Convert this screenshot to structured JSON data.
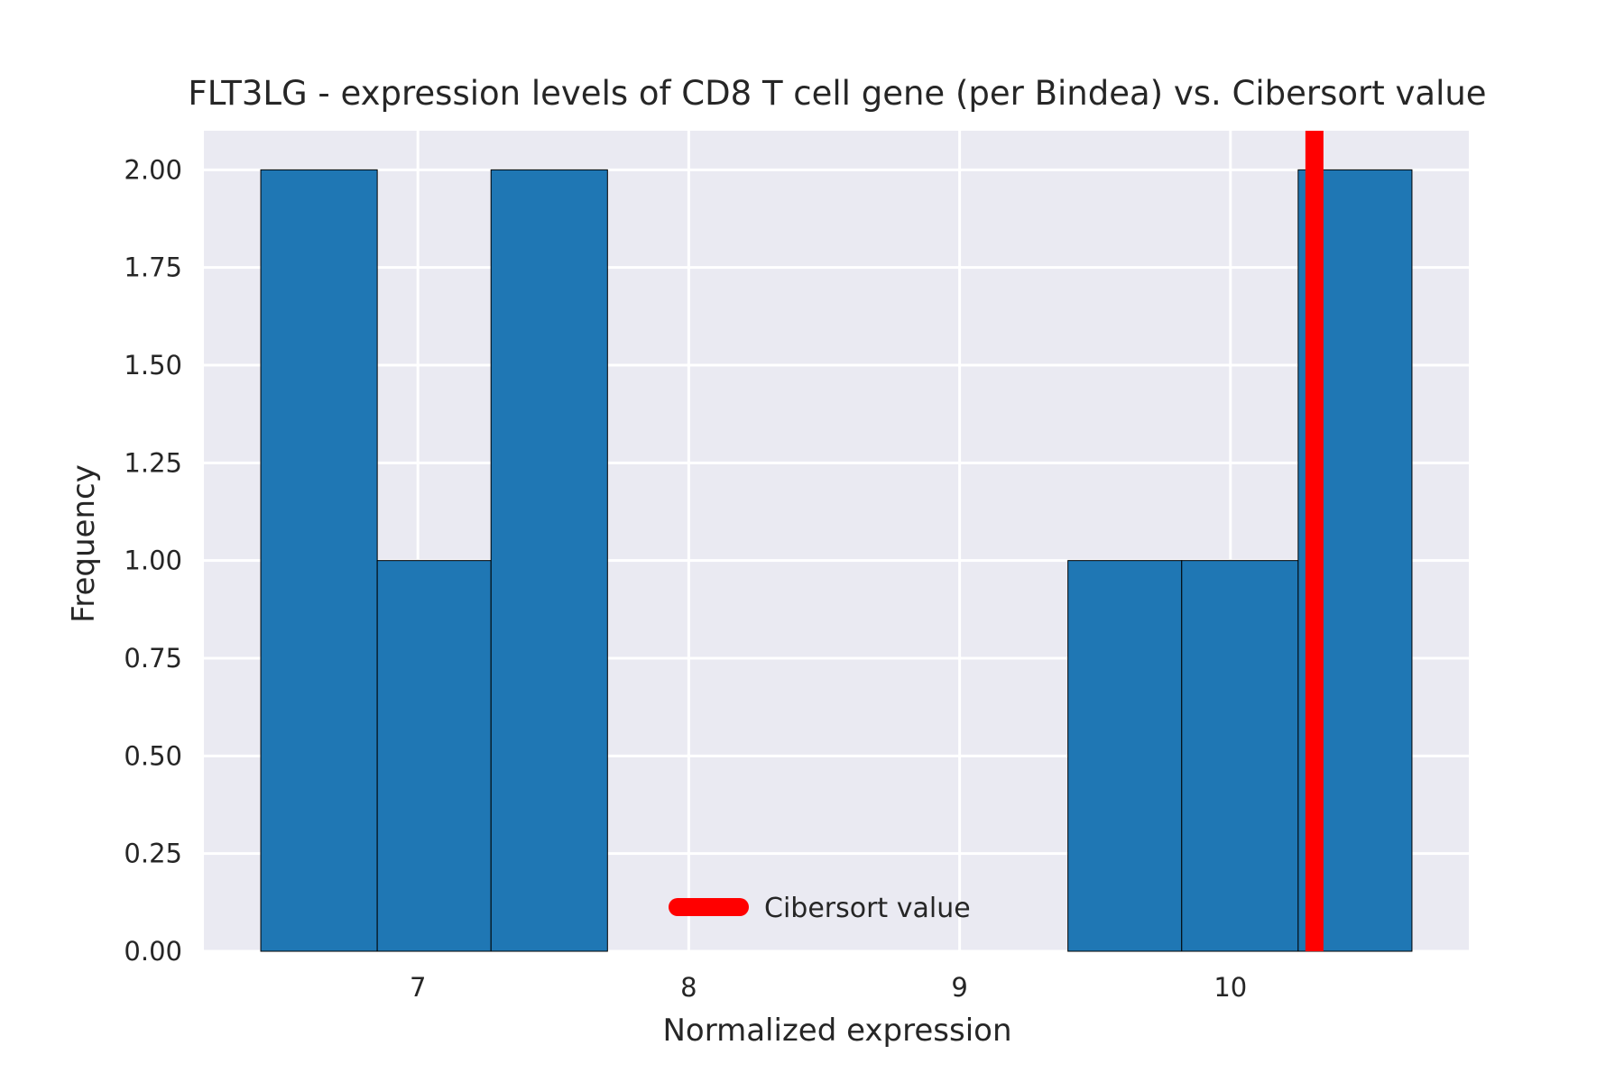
{
  "chart_data": {
    "type": "bar",
    "subtype": "histogram",
    "title": "FLT3LG - expression levels of CD8 T cell gene (per Bindea) vs. Cibersort value",
    "xlabel": "Normalized expression",
    "ylabel": "Frequency",
    "xlim": [
      6.21,
      10.88
    ],
    "ylim": [
      0,
      2.1
    ],
    "xticks": [
      {
        "value": 7,
        "label": "7"
      },
      {
        "value": 8,
        "label": "8"
      },
      {
        "value": 9,
        "label": "9"
      },
      {
        "value": 10,
        "label": "10"
      }
    ],
    "yticks": [
      {
        "value": 0,
        "label": "0.00"
      },
      {
        "value": 0.25,
        "label": "0.25"
      },
      {
        "value": 0.5,
        "label": "0.50"
      },
      {
        "value": 0.75,
        "label": "0.75"
      },
      {
        "value": 1.0,
        "label": "1.00"
      },
      {
        "value": 1.25,
        "label": "1.25"
      },
      {
        "value": 1.5,
        "label": "1.50"
      },
      {
        "value": 1.75,
        "label": "1.75"
      },
      {
        "value": 2.0,
        "label": "2.00"
      }
    ],
    "bins": [
      {
        "x0": 6.42,
        "x1": 6.85,
        "count": 2
      },
      {
        "x0": 6.85,
        "x1": 7.27,
        "count": 1
      },
      {
        "x0": 7.27,
        "x1": 7.7,
        "count": 2
      },
      {
        "x0": 7.7,
        "x1": 8.12,
        "count": 0
      },
      {
        "x0": 8.12,
        "x1": 8.55,
        "count": 0
      },
      {
        "x0": 8.55,
        "x1": 8.97,
        "count": 0
      },
      {
        "x0": 8.97,
        "x1": 9.4,
        "count": 0
      },
      {
        "x0": 9.4,
        "x1": 9.82,
        "count": 1
      },
      {
        "x0": 9.82,
        "x1": 10.25,
        "count": 1
      },
      {
        "x0": 10.25,
        "x1": 10.67,
        "count": 2
      }
    ],
    "reference_line": {
      "x": 10.31,
      "label": "Cibersort value",
      "color": "#ff0000"
    },
    "bar_color": "#1f77b4",
    "background_color": "#eaeaf2",
    "grid": true,
    "legend": {
      "position": "lower-center",
      "entries": [
        "Cibersort value"
      ]
    }
  }
}
